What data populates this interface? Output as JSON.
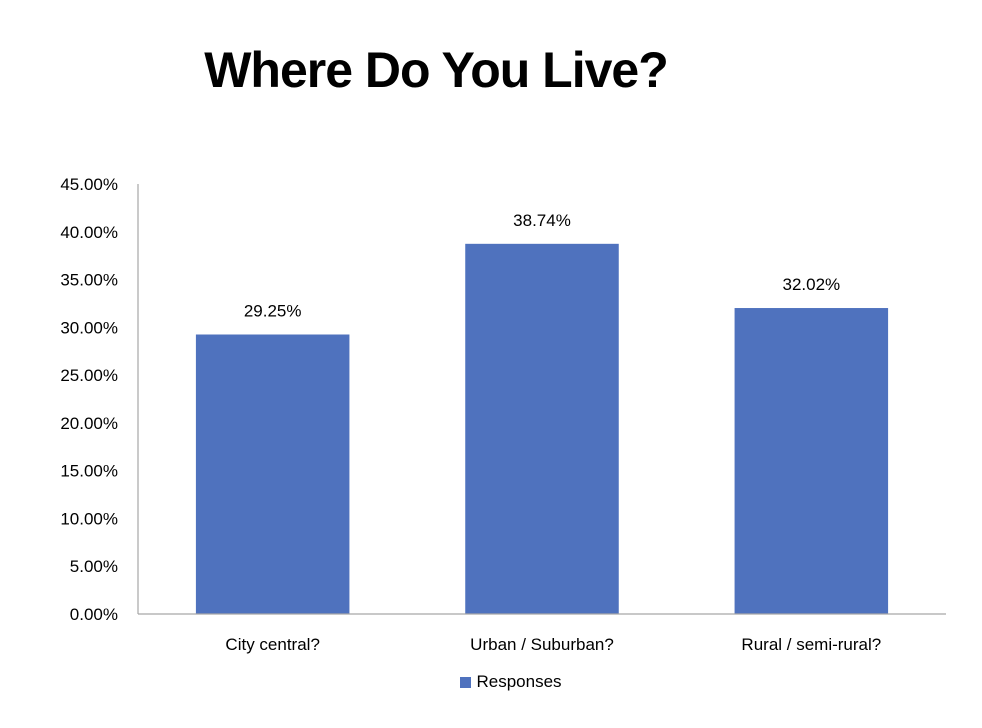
{
  "chart_data": {
    "type": "bar",
    "title": "Where Do You Live?",
    "categories": [
      "City central?",
      "Urban / Suburban?",
      "Rural / semi-rural?"
    ],
    "series": [
      {
        "name": "Responses",
        "values": [
          29.25,
          38.74,
          32.02
        ],
        "data_labels": [
          "29.25%",
          "38.74%",
          "32.02%"
        ],
        "color": "#4f72be"
      }
    ],
    "ylim": [
      0,
      45
    ],
    "yticks": [
      0,
      5,
      10,
      15,
      20,
      25,
      30,
      35,
      40,
      45
    ],
    "ytick_labels": [
      "0.00%",
      "5.00%",
      "10.00%",
      "15.00%",
      "20.00%",
      "25.00%",
      "30.00%",
      "35.00%",
      "40.00%",
      "45.00%"
    ],
    "xlabel": "",
    "ylabel": "",
    "grid": false,
    "legend_position": "bottom",
    "axis_color": "#a6a6a6"
  }
}
